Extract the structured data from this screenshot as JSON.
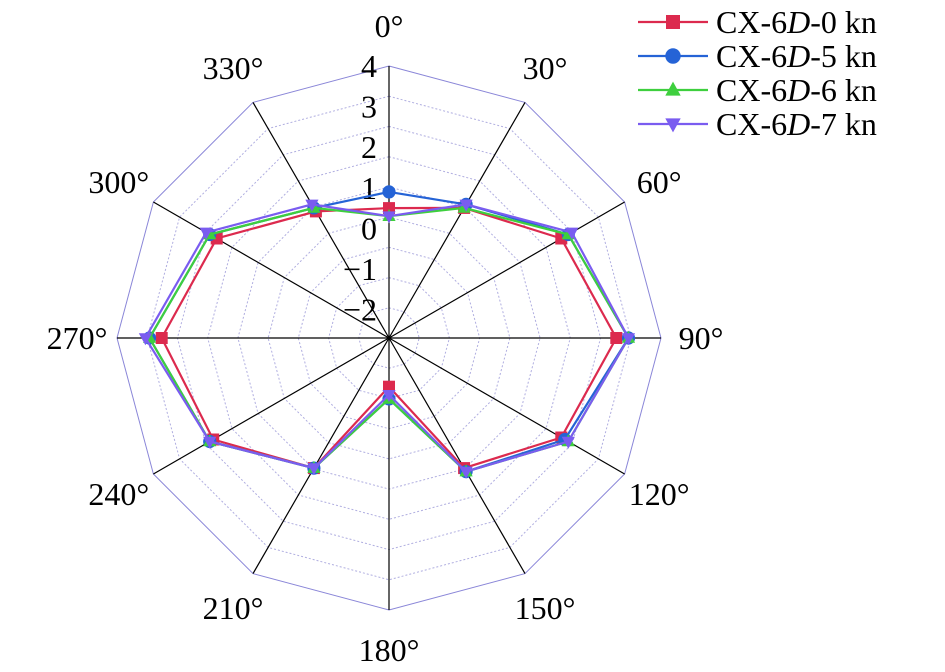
{
  "chart_data": {
    "type": "radar",
    "angles": [
      0,
      30,
      60,
      90,
      120,
      150,
      180,
      210,
      240,
      270,
      300,
      330
    ],
    "angle_labels": [
      "0°",
      "30°",
      "60°",
      "90°",
      "120°",
      "150°",
      "180°",
      "210°",
      "240°",
      "270°",
      "300°",
      "330°"
    ],
    "radial_ticks": [
      -2,
      -1,
      0,
      1,
      2,
      3,
      4
    ],
    "radial_tick_labels": [
      "−2",
      "−1",
      "0",
      "1",
      "2",
      "3",
      "4"
    ],
    "rlim": [
      -2.7,
      4
    ],
    "grid": true,
    "legend_position": "top-right",
    "series": [
      {
        "name_prefix": "CX-6",
        "name_italic": "D",
        "name_suffix": "-0 kn",
        "marker": "square",
        "color": "#dc2a4e",
        "values": [
          0.5,
          1.0,
          2.2,
          2.9,
          2.2,
          1.0,
          -1.5,
          1.0,
          2.3,
          2.9,
          2.2,
          0.9
        ]
      },
      {
        "name_prefix": "CX-6",
        "name_italic": "D",
        "name_suffix": "-5 kn",
        "marker": "circle",
        "color": "#2563d6",
        "values": [
          0.9,
          1.1,
          2.4,
          3.2,
          2.3,
          1.1,
          -1.2,
          1.0,
          2.4,
          3.2,
          2.4,
          1.0
        ]
      },
      {
        "name_prefix": "CX-6",
        "name_italic": "D",
        "name_suffix": "-6 kn",
        "marker": "triangle-up",
        "color": "#3ecf3e",
        "values": [
          0.3,
          1.0,
          2.4,
          3.2,
          2.4,
          1.1,
          -1.2,
          1.0,
          2.4,
          3.2,
          2.4,
          1.0
        ]
      },
      {
        "name_prefix": "CX-6",
        "name_italic": "D",
        "name_suffix": "-7 kn",
        "marker": "triangle-down",
        "color": "#7a5cf0",
        "values": [
          0.3,
          1.1,
          2.5,
          3.2,
          2.4,
          1.1,
          -1.3,
          1.0,
          2.4,
          3.3,
          2.5,
          1.1
        ]
      }
    ]
  }
}
